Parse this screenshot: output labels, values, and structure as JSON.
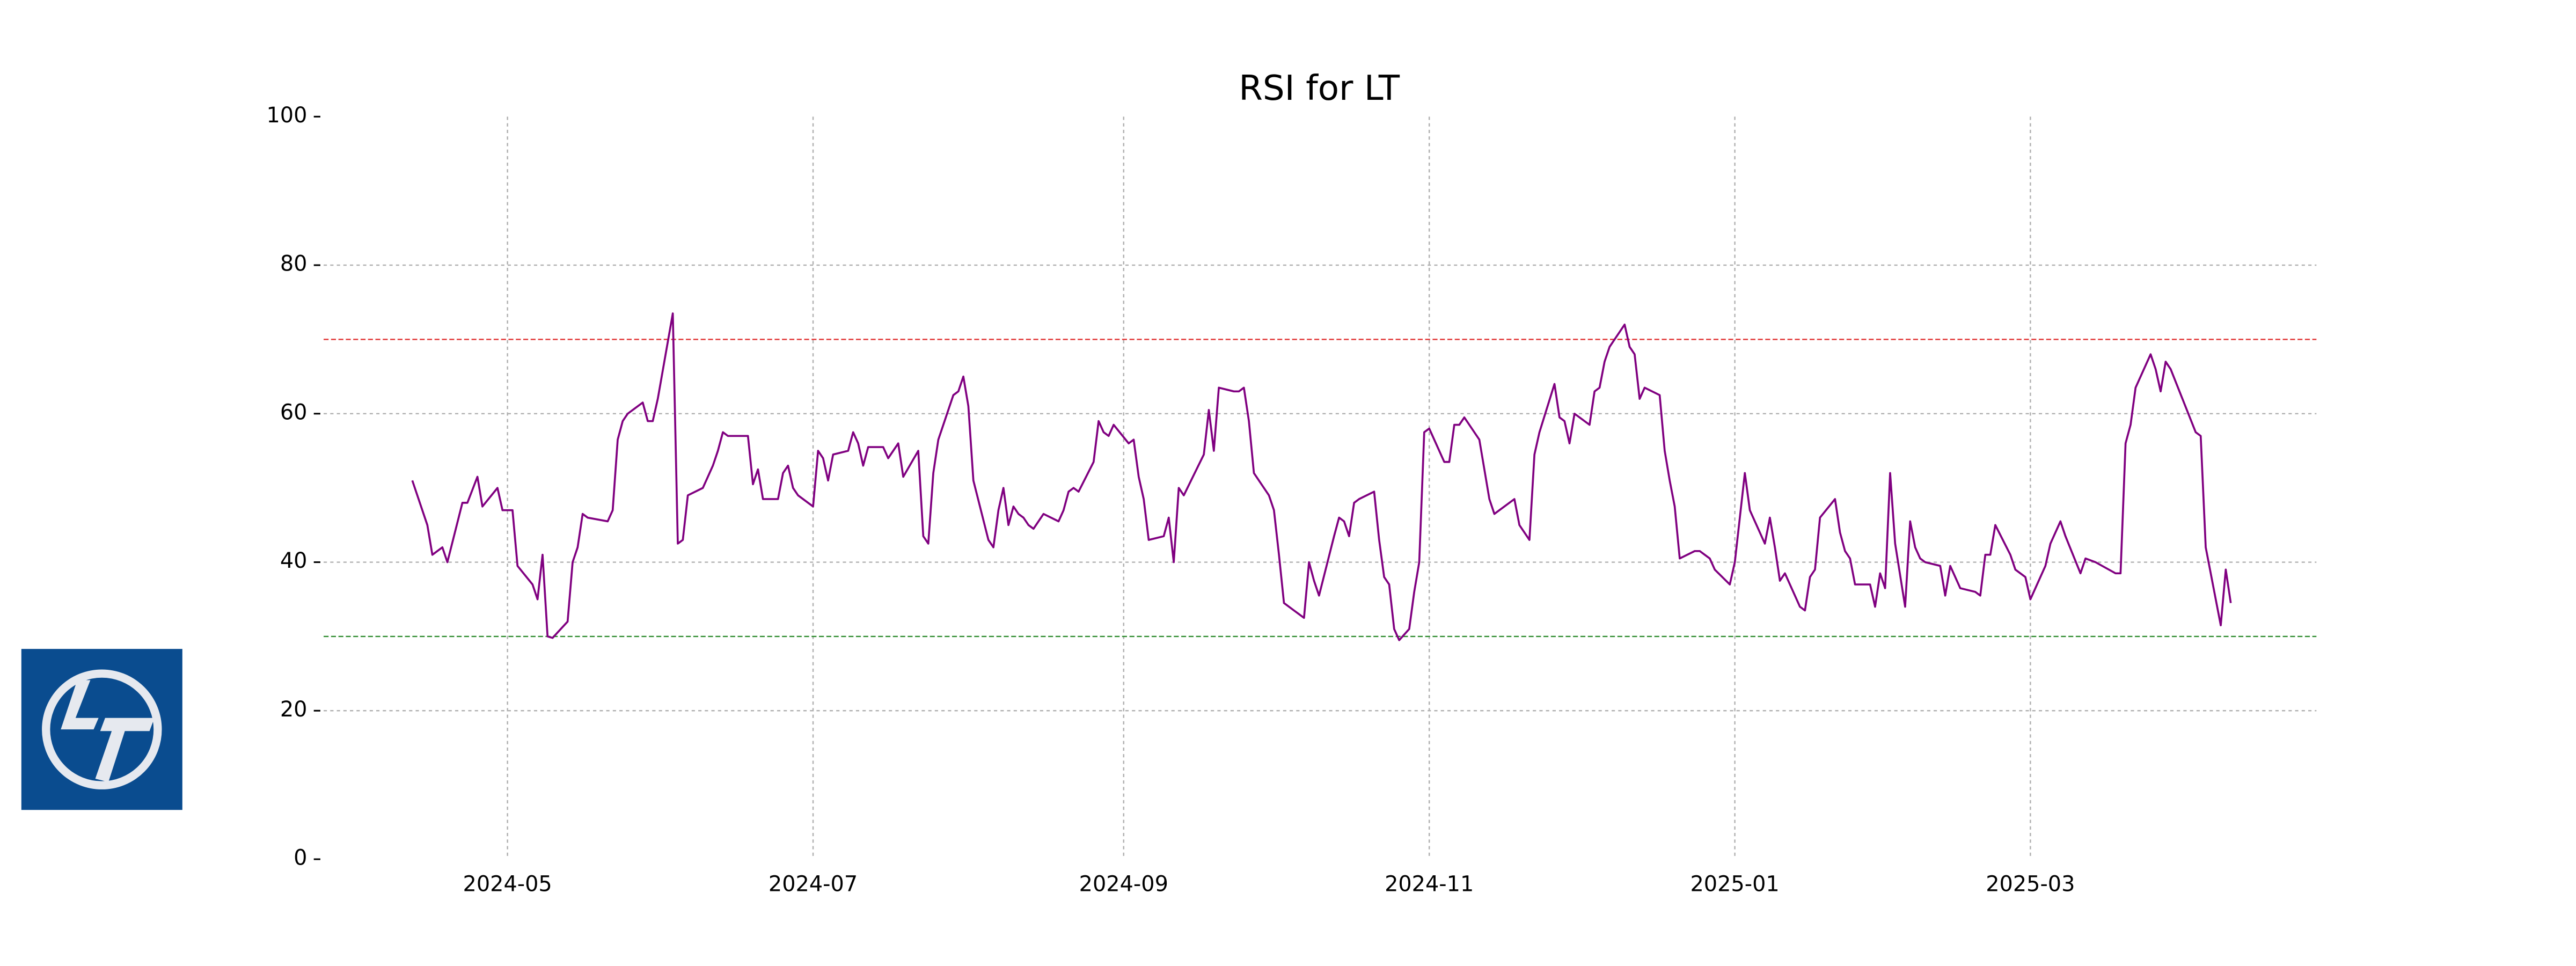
{
  "chart_data": {
    "type": "line",
    "title": "RSI for LT",
    "x": [
      19825,
      19828,
      19829,
      19831,
      19832,
      19835,
      19836,
      19838,
      19839,
      19842,
      19843,
      19845,
      19846,
      19849,
      19850,
      19851,
      19852,
      19853,
      19856,
      19857,
      19858,
      19859,
      19860,
      19864,
      19865,
      19866,
      19867,
      19868,
      19871,
      19872,
      19873,
      19874,
      19877,
      19878,
      19879,
      19880,
      19883,
      19885,
      19886,
      19887,
      19888,
      19892,
      19893,
      19894,
      19895,
      19898,
      19899,
      19900,
      19901,
      19902,
      19904,
      19905,
      19906,
      19907,
      19908,
      19909,
      19912,
      19913,
      19914,
      19915,
      19916,
      19919,
      19920,
      19922,
      19923,
      19926,
      19927,
      19928,
      19929,
      19930,
      19933,
      19934,
      19935,
      19936,
      19937,
      19940,
      19941,
      19942,
      19943,
      19944,
      19945,
      19946,
      19947,
      19948,
      19949,
      19951,
      19954,
      19955,
      19956,
      19957,
      19958,
      19961,
      19962,
      19963,
      19964,
      19965,
      19968,
      19969,
      19970,
      19971,
      19972,
      19975,
      19976,
      19977,
      19978,
      19979,
      19983,
      19984,
      19985,
      19986,
      19989,
      19990,
      19991,
      19992,
      19993,
      19996,
      19997,
      19998,
      19999,
      20002,
      20003,
      20004,
      20005,
      20006,
      20009,
      20010,
      20011,
      20012,
      20013,
      20014,
      20017,
      20018,
      20019,
      20020,
      20021,
      20022,
      20024,
      20025,
      20026,
      20027,
      20028,
      20031,
      20032,
      20033,
      20034,
      20035,
      20038,
      20039,
      20040,
      20041,
      20045,
      20046,
      20048,
      20049,
      20050,
      20053,
      20054,
      20055,
      20056,
      20057,
      20060,
      20061,
      20062,
      20063,
      20064,
      20067,
      20068,
      20069,
      20070,
      20071,
      20074,
      20075,
      20076,
      20077,
      20078,
      20081,
      20082,
      20083,
      20084,
      20085,
      20088,
      20089,
      20090,
      20091,
      20092,
      20095,
      20096,
      20097,
      20098,
      20099,
      20102,
      20103,
      20104,
      20105,
      20106,
      20109,
      20110,
      20111,
      20112,
      20113,
      20116,
      20117,
      20118,
      20119,
      20120,
      20121,
      20123,
      20124,
      20125,
      20126,
      20127,
      20130,
      20131,
      20132,
      20134,
      20137,
      20138,
      20139,
      20140,
      20141,
      20144,
      20145,
      20147,
      20148,
      20151,
      20152,
      20154,
      20155,
      20158,
      20159,
      20161,
      20165,
      20166,
      20167,
      20168,
      20169,
      20172,
      20173,
      20174,
      20175,
      20176,
      20181,
      20182,
      20183,
      20186,
      20187,
      20188
    ],
    "series": [
      {
        "name": "RSI",
        "color": "#800080",
        "values": [
          51,
          45,
          41,
          42,
          40,
          48,
          48,
          51.5,
          47.5,
          50,
          47,
          47,
          39.5,
          37,
          35,
          41,
          30,
          29.8,
          32,
          40,
          42,
          46.5,
          46,
          45.5,
          47,
          56.5,
          59,
          60,
          61.5,
          59,
          59,
          62,
          73.5,
          42.5,
          43,
          49,
          50,
          53,
          55,
          57.5,
          57,
          57,
          50.5,
          52.5,
          48.5,
          48.5,
          52,
          53,
          50,
          49,
          48,
          47.5,
          55,
          54,
          51,
          54.5,
          55,
          57.5,
          56,
          53,
          55.5,
          55.5,
          54,
          56,
          51.5,
          55,
          43.5,
          42.5,
          52,
          56.5,
          62.5,
          63,
          65,
          61,
          51,
          43,
          42,
          47,
          50,
          45,
          47.5,
          46.5,
          46,
          45,
          44.5,
          46.5,
          45.5,
          47,
          49.5,
          50,
          49.5,
          53.5,
          59,
          57.5,
          57,
          58.5,
          56,
          56.5,
          51.5,
          48.5,
          43,
          43.5,
          46,
          40,
          50,
          49,
          54.5,
          60.5,
          55,
          63.5,
          63,
          63,
          63.5,
          59,
          52,
          49,
          47,
          41,
          34.5,
          33,
          32.5,
          40,
          37.5,
          35.5,
          43.5,
          46,
          45.5,
          43.5,
          48,
          48.5,
          49.5,
          43,
          38,
          37,
          31,
          29.5,
          31,
          36,
          40,
          57.5,
          58,
          53.5,
          53.5,
          58.5,
          58.5,
          59.5,
          56.5,
          52.5,
          48.5,
          46.5,
          48.5,
          45,
          43,
          54.5,
          57.5,
          64,
          59.5,
          59,
          56,
          60,
          58.5,
          63,
          63.5,
          67,
          69,
          72,
          69,
          68,
          62,
          63.5,
          62.5,
          55,
          51,
          47.5,
          40.5,
          41.5,
          41.5,
          41,
          40.5,
          39,
          37,
          40,
          46,
          52,
          47,
          42.5,
          46,
          42,
          37.5,
          38.5,
          34,
          33.5,
          38,
          39,
          46,
          48.5,
          44,
          41.5,
          40.5,
          37,
          37,
          34,
          38.5,
          36.5,
          52,
          42.5,
          34,
          45.5,
          42,
          40.5,
          40,
          39.5,
          35.5,
          39.5,
          36.5,
          36,
          35.5,
          41,
          41,
          45,
          41,
          39,
          38,
          35,
          39.5,
          42.5,
          45.5,
          43.5,
          38.5,
          40.5,
          40,
          38.5,
          38.5,
          56,
          58.5,
          63.5,
          68,
          66,
          63,
          67,
          66,
          57.5,
          57,
          42,
          31.5,
          39,
          34.5
        ]
      }
    ],
    "hlines": [
      {
        "value": 70,
        "color": "#e03030"
      },
      {
        "value": 30,
        "color": "#2e8b2e"
      }
    ],
    "xlim": [
      19807.3,
      20205.1
    ],
    "xticks": [
      {
        "value": 19844,
        "label": "2024-05"
      },
      {
        "value": 19905,
        "label": "2024-07"
      },
      {
        "value": 19967,
        "label": "2024-09"
      },
      {
        "value": 20028,
        "label": "2024-11"
      },
      {
        "value": 20089,
        "label": "2025-01"
      },
      {
        "value": 20148,
        "label": "2025-03"
      }
    ],
    "ylim": [
      0,
      100
    ],
    "yticks": [
      0,
      20,
      40,
      60,
      80,
      100
    ],
    "grid": true
  }
}
